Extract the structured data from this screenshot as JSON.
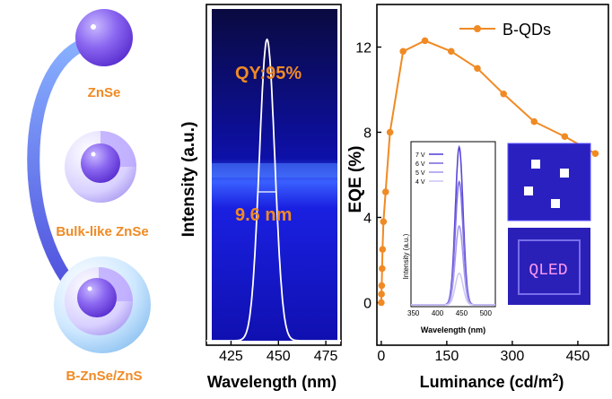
{
  "left_panel": {
    "labels": [
      "ZnSe",
      "Bulk-like ZnSe",
      "B-ZnSe/ZnS"
    ],
    "accent_color": "#f08a24"
  },
  "middle_panel": {
    "y_title": "Intensity (a.u.)",
    "x_title": "Wavelength (nm)",
    "x_ticks": [
      "425",
      "450",
      "475"
    ],
    "annotation_qy": "QY:95%",
    "annotation_fwhm": "9.6 nm",
    "peak_nm": 444,
    "fwhm_nm": 9.6
  },
  "chart_data": [
    {
      "type": "line",
      "title": "",
      "xlabel": "Luminance (cd/m2)",
      "ylabel": "EQE (%)",
      "xlim": [
        -10,
        520
      ],
      "ylim": [
        -2,
        14
      ],
      "x_ticks": [
        0,
        150,
        300,
        450
      ],
      "y_ticks": [
        0,
        4,
        8,
        12
      ],
      "legend_position": "top-right",
      "series": [
        {
          "name": "B-QDs",
          "color": "#f08a24",
          "x": [
            0,
            0.5,
            1,
            2,
            3,
            5,
            10,
            20,
            50,
            100,
            160,
            220,
            280,
            350,
            420,
            490
          ],
          "y": [
            0.0,
            0.4,
            0.8,
            1.6,
            2.5,
            3.8,
            5.2,
            8.0,
            11.8,
            12.3,
            11.8,
            11.0,
            9.8,
            8.5,
            7.8,
            7.0
          ]
        }
      ]
    },
    {
      "type": "line",
      "title": "",
      "xlabel": "Wavelength (nm)",
      "ylabel": "Intensity (a.u.)",
      "x_ticks": [
        350,
        400,
        450,
        500
      ],
      "xlim": [
        345,
        520
      ],
      "series": [
        {
          "name": "7 V",
          "peak": 1.0
        },
        {
          "name": "6 V",
          "peak": 0.78
        },
        {
          "name": "5 V",
          "peak": 0.5
        },
        {
          "name": "4 V",
          "peak": 0.2
        }
      ]
    }
  ],
  "inset_photos": {
    "label": "QLED"
  }
}
